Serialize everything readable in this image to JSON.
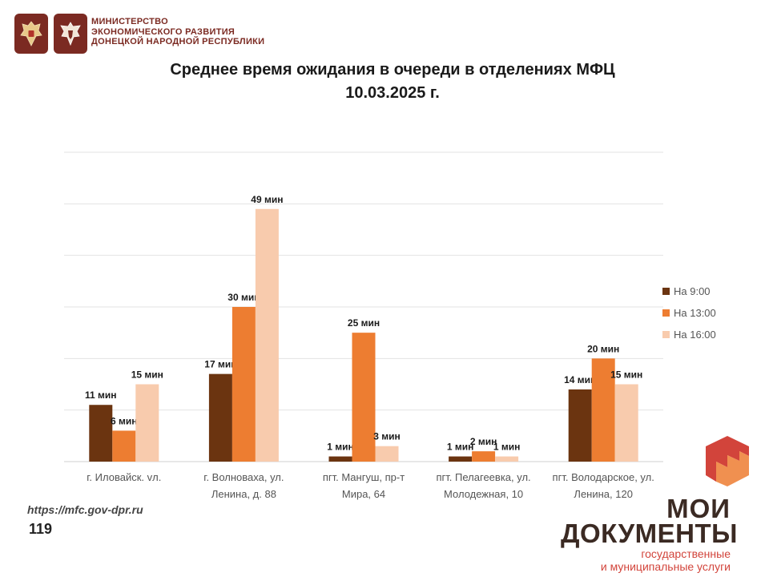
{
  "header": {
    "ministry_lines": [
      "МИНИСТЕРСТВО",
      "ЭКОНОМИЧЕСКОГО РАЗВИТИЯ",
      "ДОНЕЦКОЙ НАРОДНОЙ РЕСПУБЛИКИ"
    ],
    "emblem_icons": [
      "russia-coat-of-arms-icon",
      "dpr-coat-of-arms-icon"
    ]
  },
  "footer": {
    "url": "https://mfc.gov-dpr.ru",
    "page_number": "119",
    "brand_line1": "МОИ",
    "brand_line2": "ДОКУМЕНТЫ",
    "brand_line3": "государственные",
    "brand_line4": "и муниципальные услуги",
    "brand_icon": "moi-dokumenty-logo-icon"
  },
  "chart_data": {
    "type": "bar",
    "title": "Среднее время ожидания в очереди в отделениях МФЦ",
    "subtitle": "10.03.2025 г.",
    "categories": [
      [
        "г. Иловайск. vл."
      ],
      [
        "г. Волноваха, ул.",
        "Ленина, д. 88"
      ],
      [
        "пгт. Мангуш, пр-т",
        "Мира, 64"
      ],
      [
        "пгт. Пелагеевка, ул.",
        "Молодежная, 10"
      ],
      [
        "пгт. Володарское, ул.",
        "Ленина, 120"
      ]
    ],
    "series": [
      {
        "name": "На 9:00",
        "color": "#6b3410",
        "values": [
          11,
          17,
          1,
          1,
          14
        ],
        "labels": [
          "11 мин",
          "17 мин",
          "1 мин",
          "1 мин",
          "14 мин"
        ]
      },
      {
        "name": "На 13:00",
        "color": "#ed7d31",
        "values": [
          6,
          30,
          25,
          2,
          20
        ],
        "labels": [
          "6 мин",
          "30 мин",
          "25 мин",
          "2 мин",
          "20 мин"
        ]
      },
      {
        "name": "На 16:00",
        "color": "#f8cbad",
        "values": [
          15,
          49,
          3,
          1,
          15
        ],
        "labels": [
          "15 мин",
          "49 мин",
          "3 мин",
          "1 мин",
          "15 мин"
        ]
      }
    ],
    "ylim": [
      0,
      60
    ],
    "y_gridlines": [
      0,
      10,
      20,
      30,
      40,
      50,
      60
    ],
    "grid": true,
    "legend_position": "right"
  }
}
